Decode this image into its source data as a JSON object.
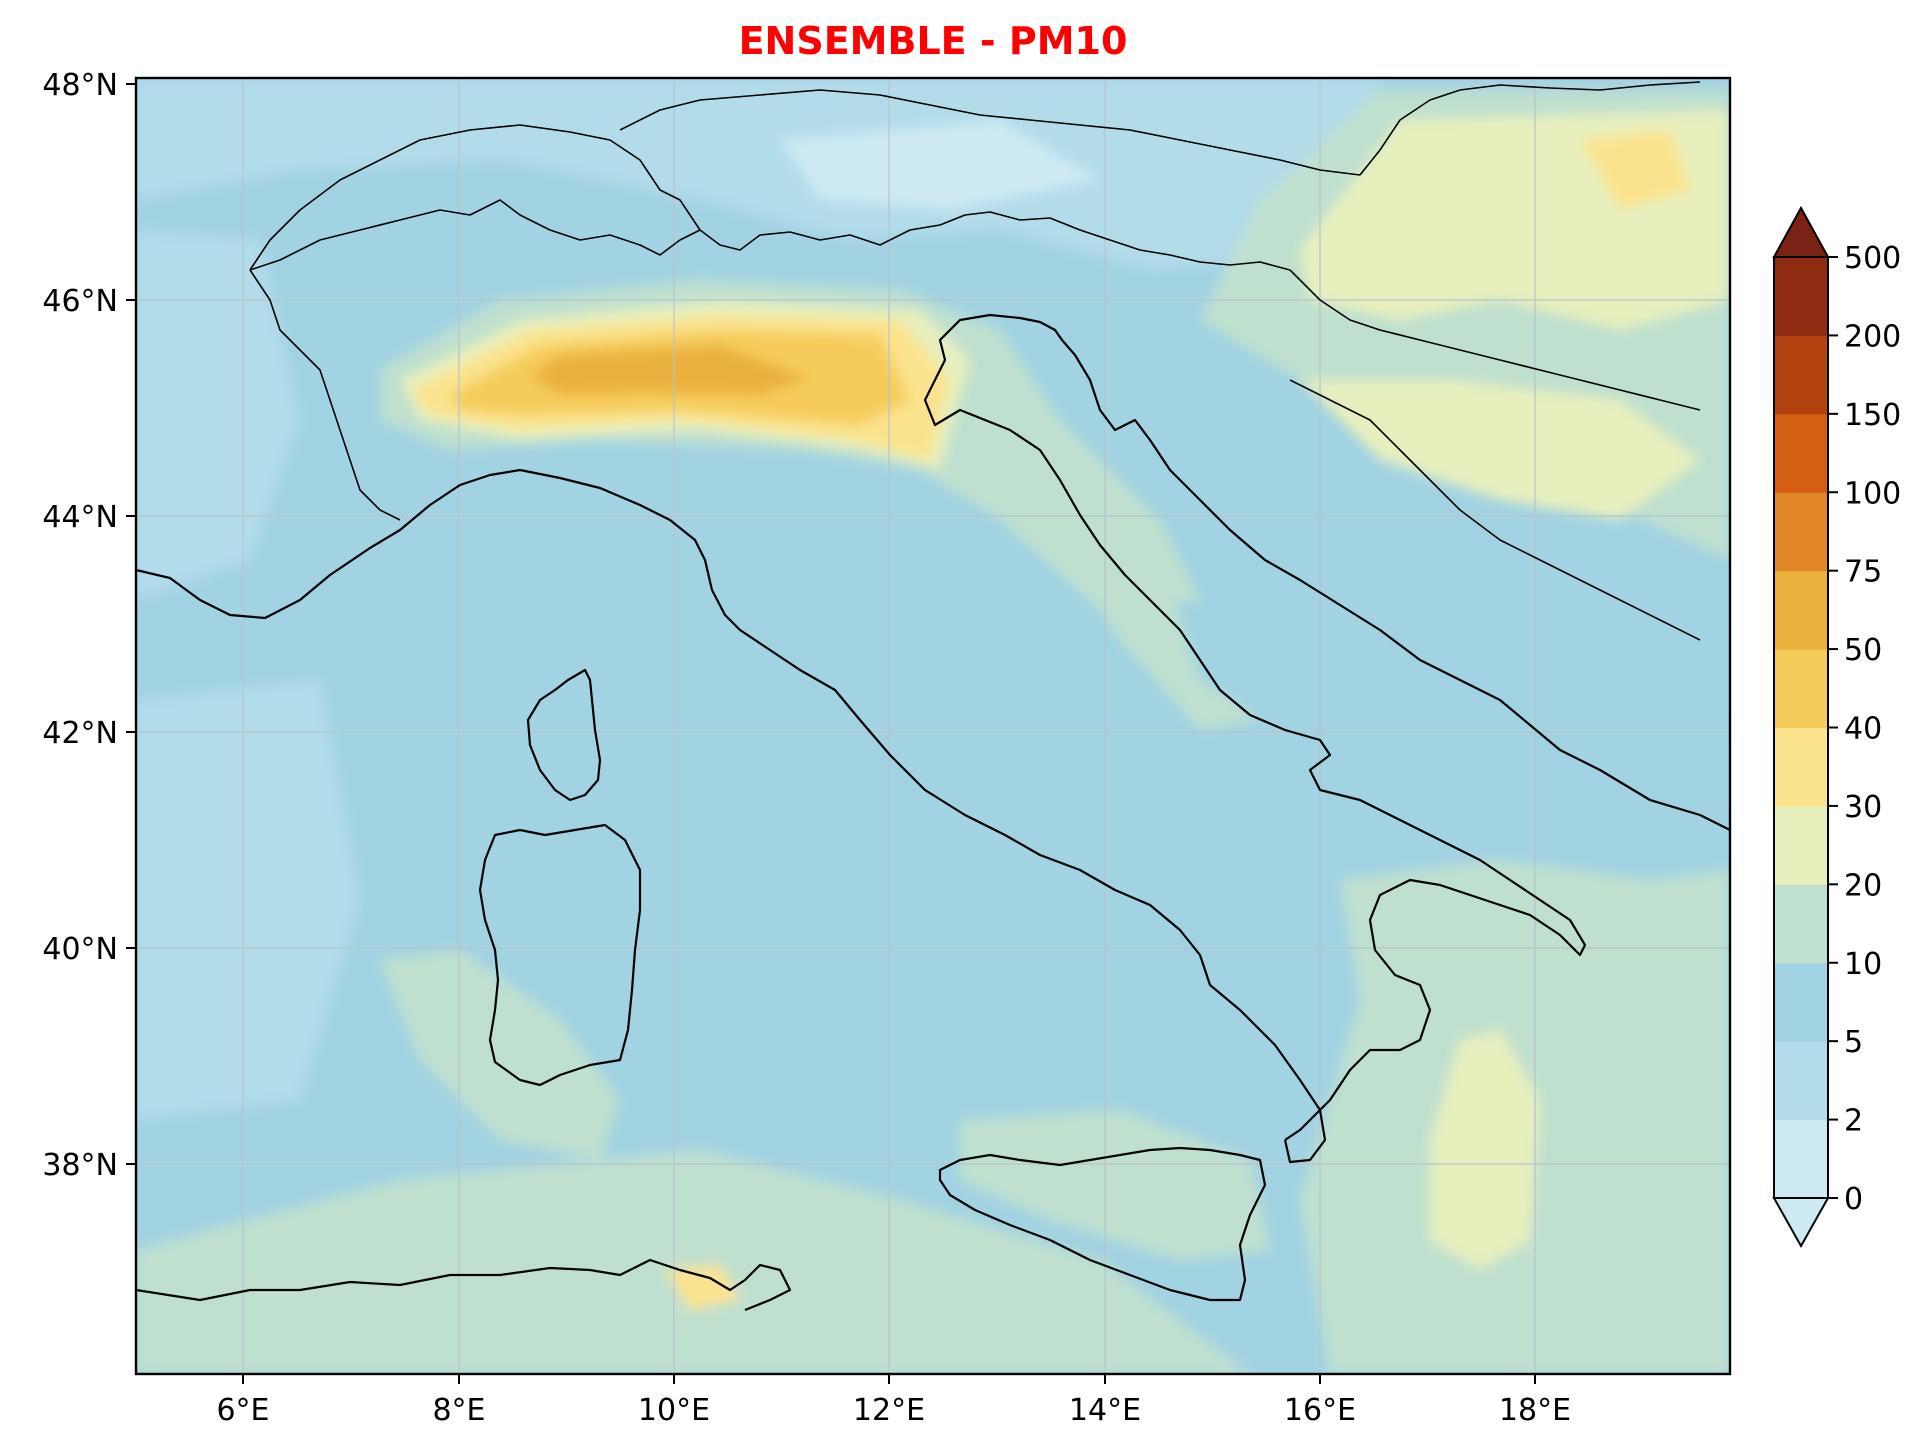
{
  "title": "ENSEMBLE - PM10",
  "colors": {
    "title": "#ff0000",
    "levels": [
      "#cdeaf3",
      "#b2dcea",
      "#a2d3e3",
      "#bfe0cf",
      "#e7efbd",
      "#fbe38d",
      "#f5cc5c",
      "#ebb13c",
      "#e18629",
      "#d45e11",
      "#b1420f",
      "#8f2b11",
      "#7b2312"
    ]
  },
  "map": {
    "lon_range": [
      5,
      19.8
    ],
    "lat_range": [
      36,
      48
    ],
    "x_ticks": [
      "6°E",
      "8°E",
      "10°E",
      "12°E",
      "14°E",
      "16°E",
      "18°E"
    ],
    "y_ticks": [
      "48°N",
      "46°N",
      "44°N",
      "42°N",
      "40°N",
      "38°N"
    ],
    "grid": true
  },
  "colorbar": {
    "levels": [
      "0",
      "2",
      "5",
      "10",
      "20",
      "30",
      "40",
      "50",
      "75",
      "100",
      "150",
      "200",
      "500"
    ],
    "extend": "both",
    "position": "right"
  }
}
